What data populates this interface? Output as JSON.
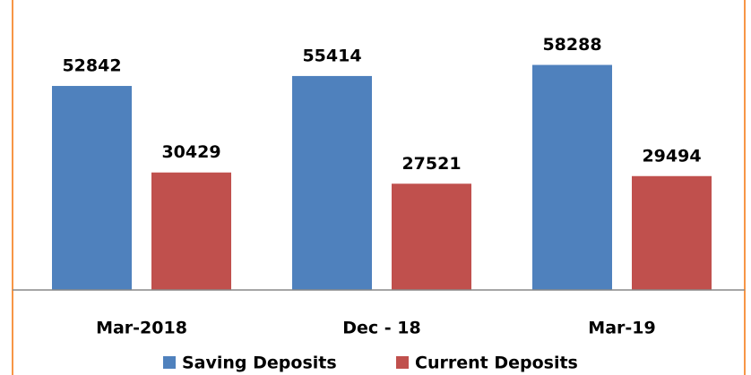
{
  "chart_data": {
    "type": "bar",
    "categories": [
      "Mar-2018",
      "Dec - 18",
      "Mar-19"
    ],
    "series": [
      {
        "name": "Saving Deposits",
        "color": "#4f81bd",
        "values": [
          52842,
          55414,
          58288
        ]
      },
      {
        "name": "Current Deposits",
        "color": "#c0504d",
        "values": [
          30429,
          27521,
          29494
        ]
      }
    ],
    "ylim": [
      0,
      70000
    ],
    "legend": "bottom"
  }
}
